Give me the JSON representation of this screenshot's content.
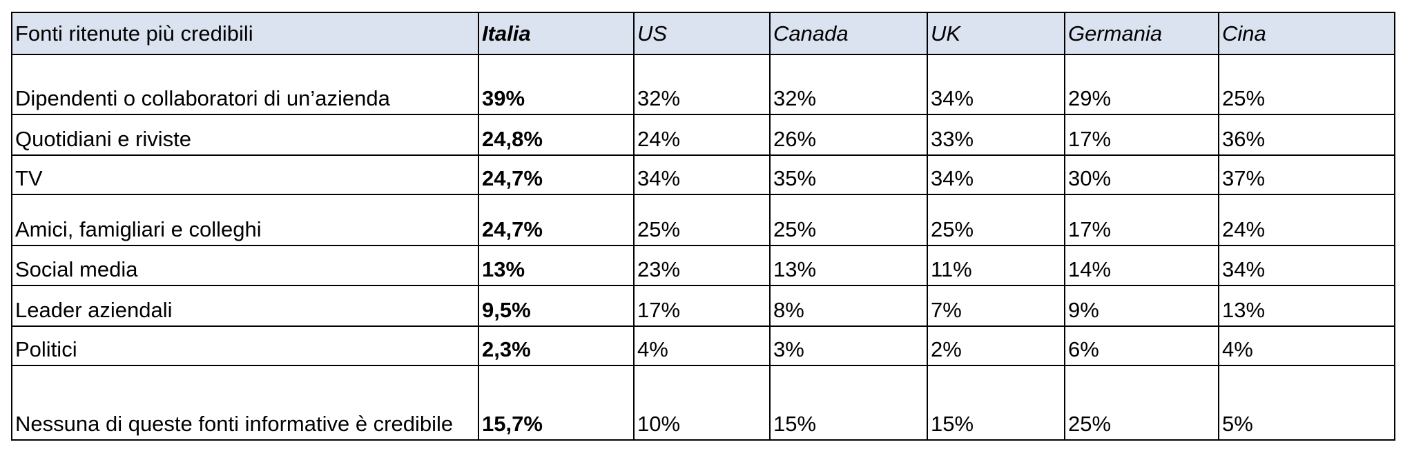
{
  "table": {
    "header": [
      "Fonti ritenute più credibili",
      "Italia",
      "US",
      "Canada",
      "UK",
      "Germania",
      "Cina"
    ],
    "rows": [
      [
        "Dipendenti o collaboratori di un’azienda",
        "39%",
        "32%",
        "32%",
        "34%",
        "29%",
        "25%"
      ],
      [
        "Quotidiani e riviste",
        "24,8%",
        "24%",
        "26%",
        "33%",
        "17%",
        "36%"
      ],
      [
        "TV",
        "24,7%",
        "34%",
        "35%",
        "34%",
        "30%",
        "37%"
      ],
      [
        "Amici, famigliari e colleghi",
        "24,7%",
        "25%",
        "25%",
        "25%",
        "17%",
        "24%"
      ],
      [
        "Social media",
        "13%",
        "23%",
        "13%",
        "11%",
        "14%",
        "34%"
      ],
      [
        "Leader aziendali",
        "9,5%",
        "17%",
        "8%",
        "7%",
        "9%",
        "13%"
      ],
      [
        "Politici",
        "2,3%",
        "4%",
        "3%",
        "2%",
        "6%",
        "4%"
      ],
      [
        "Nessuna di queste fonti informative è credibile",
        "15,7%",
        "10%",
        "15%",
        "15%",
        "25%",
        "5%"
      ]
    ]
  }
}
